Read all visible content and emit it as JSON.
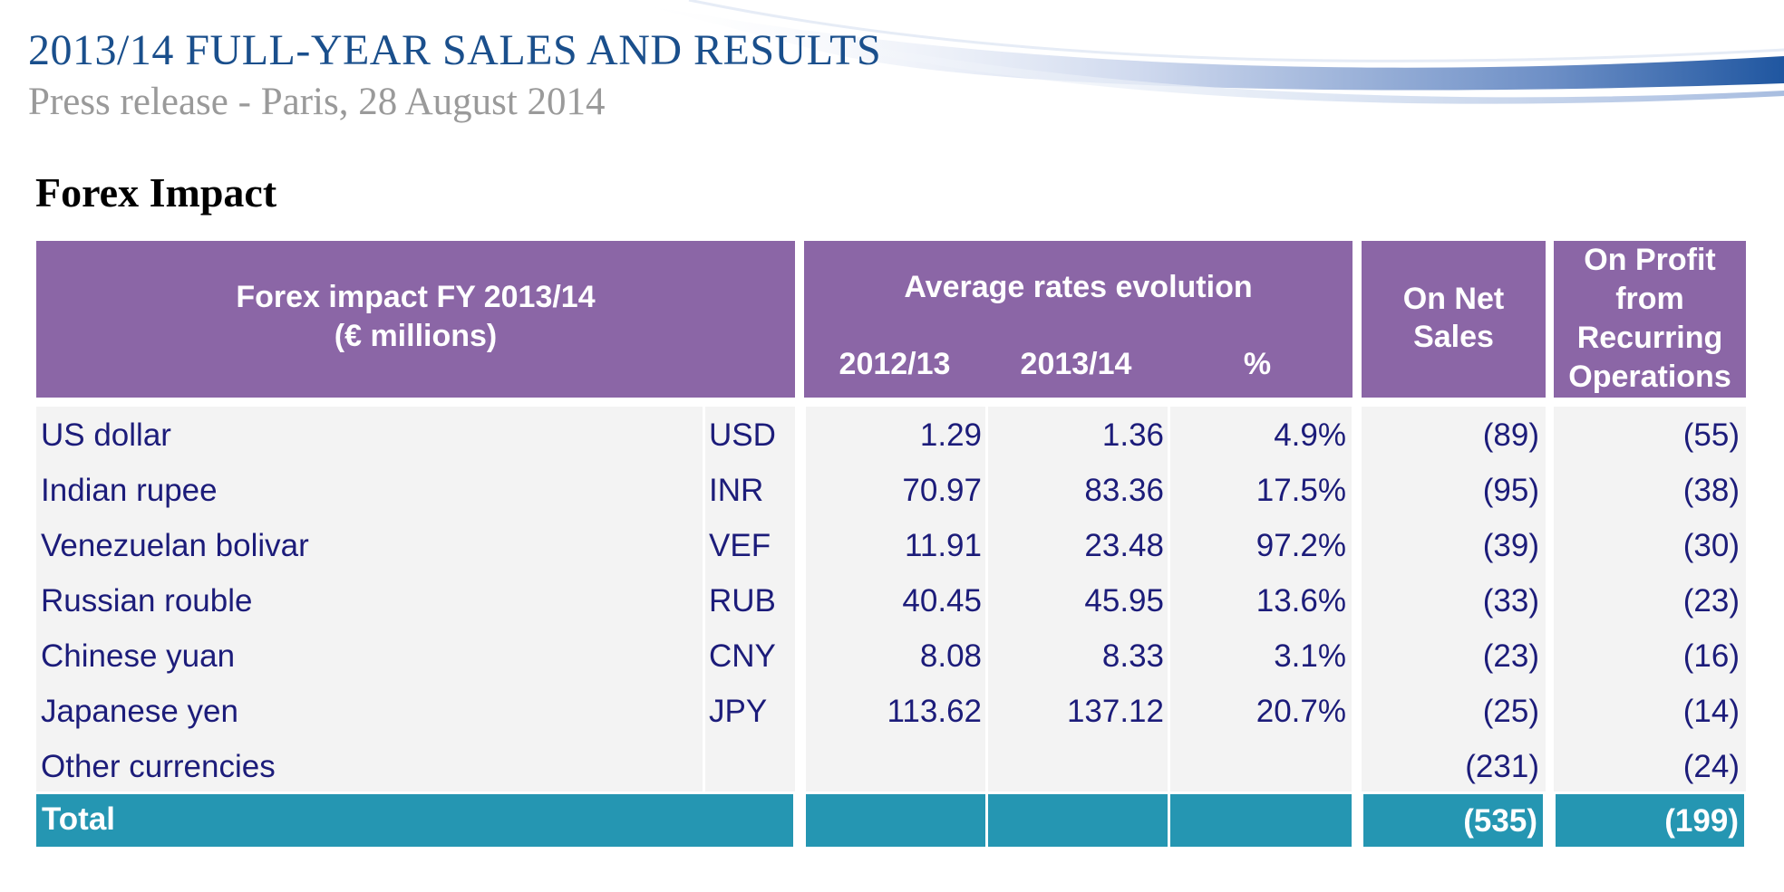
{
  "header": {
    "title": "2013/14 FULL-YEAR SALES AND RESULTS",
    "subtitle": "Press release - Paris, 28 August 2014"
  },
  "section_title": "Forex Impact",
  "table": {
    "headers": {
      "label_line1": "Forex impact FY 2013/14",
      "label_line2": "(€ millions)",
      "rates_group": "Average rates evolution",
      "col_prev": "2012/13",
      "col_curr": "2013/14",
      "col_pct": "%",
      "net_sales_line1": "On Net",
      "net_sales_line2": "Sales",
      "profit_line1": "On Profit",
      "profit_line2": "from",
      "profit_line3": "Recurring",
      "profit_line4": "Operations"
    },
    "rows": [
      {
        "name": "US dollar",
        "code": "USD",
        "prev": "1.29",
        "curr": "1.36",
        "pct": "4.9%",
        "net_sales": "(89)",
        "profit": "(55)"
      },
      {
        "name": "Indian rupee",
        "code": "INR",
        "prev": "70.97",
        "curr": "83.36",
        "pct": "17.5%",
        "net_sales": "(95)",
        "profit": "(38)"
      },
      {
        "name": "Venezuelan bolivar",
        "code": "VEF",
        "prev": "11.91",
        "curr": "23.48",
        "pct": "97.2%",
        "net_sales": "(39)",
        "profit": "(30)"
      },
      {
        "name": "Russian rouble",
        "code": "RUB",
        "prev": "40.45",
        "curr": "45.95",
        "pct": "13.6%",
        "net_sales": "(33)",
        "profit": "(23)"
      },
      {
        "name": "Chinese yuan",
        "code": "CNY",
        "prev": "8.08",
        "curr": "8.33",
        "pct": "3.1%",
        "net_sales": "(23)",
        "profit": "(16)"
      },
      {
        "name": "Japanese yen",
        "code": "JPY",
        "prev": "113.62",
        "curr": "137.12",
        "pct": "20.7%",
        "net_sales": "(25)",
        "profit": "(14)"
      },
      {
        "name": "Other currencies",
        "code": "",
        "prev": "",
        "curr": "",
        "pct": "",
        "net_sales": "(231)",
        "profit": "(24)"
      }
    ],
    "total": {
      "label": "Total",
      "net_sales": "(535)",
      "profit": "(199)"
    }
  },
  "colors": {
    "header_bg": "#8b66a6",
    "body_bg": "#f3f3f3",
    "total_bg": "#2596b2",
    "body_text": "#1c1c7a",
    "title_text": "#1a4f8c"
  }
}
